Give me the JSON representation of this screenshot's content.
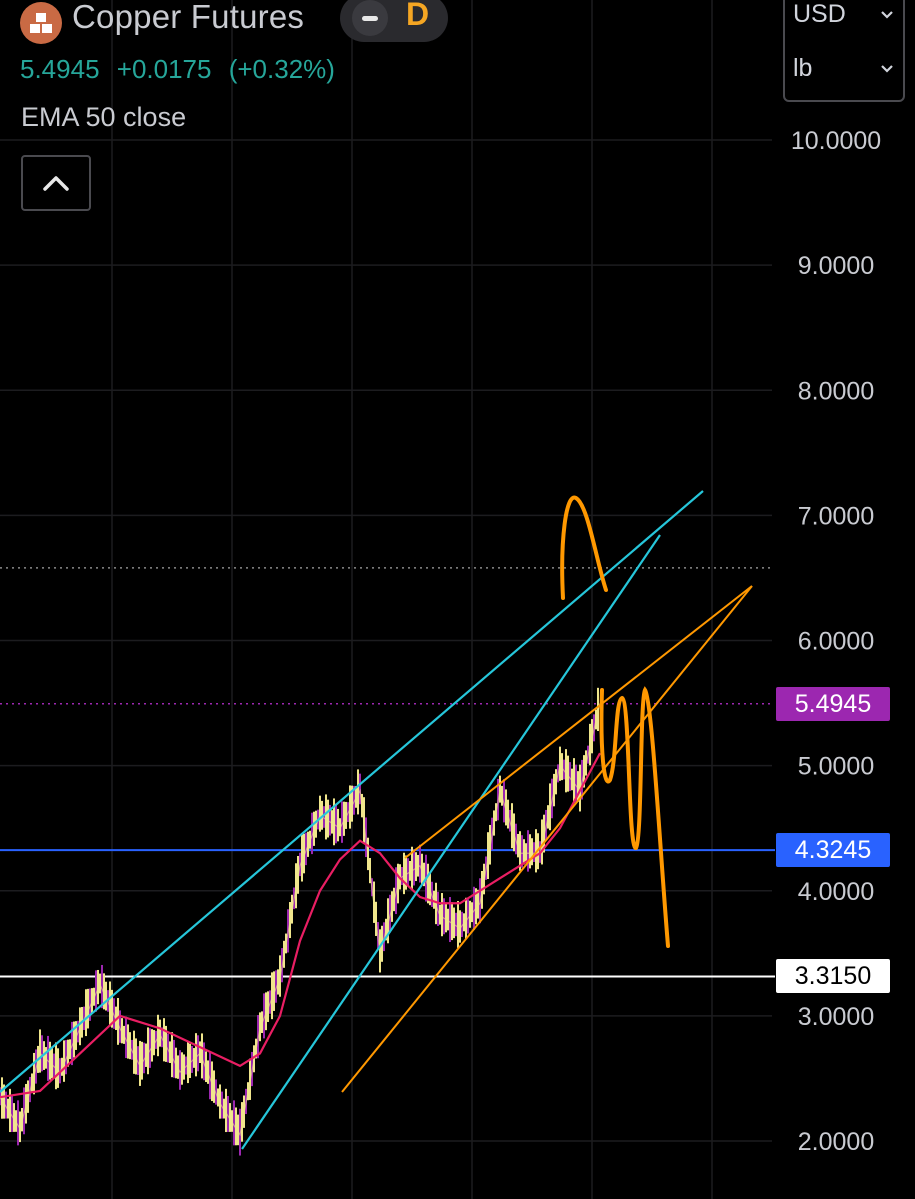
{
  "header": {
    "symbol_name": "Copper Futures",
    "interval": "D",
    "last_price": "5.4945",
    "change": "+0.0175",
    "change_pct": "(+0.32%)",
    "change_color": "#26a69a",
    "indicator_label": "EMA 50 close",
    "logo_icon": "copper-cubes-icon",
    "collapse_icon": "chevron-up-icon"
  },
  "units": {
    "currency": "USD",
    "unit": "lb"
  },
  "price_axis": {
    "ticks": [
      "10.0000",
      "9.0000",
      "8.0000",
      "7.0000",
      "6.0000",
      "5.0000",
      "4.0000",
      "3.0000",
      "2.0000"
    ],
    "tick_values": [
      10,
      9,
      8,
      7,
      6,
      5,
      4,
      3,
      2
    ],
    "scale": "linear"
  },
  "price_labels": {
    "current": {
      "text": "5.4945",
      "value": 5.4945,
      "bg": "#9c27b0",
      "color": "#ffffff"
    },
    "blue_level": {
      "text": "4.3245",
      "value": 4.3245,
      "bg": "#2962ff",
      "color": "#ffffff"
    },
    "white_level": {
      "text": "3.3150",
      "value": 3.315,
      "bg": "#ffffff",
      "color": "#000000"
    }
  },
  "chart_data": {
    "type": "line",
    "series": [
      {
        "name": "",
        "color": "#f0e68c",
        "x": [
          0,
          20,
          40,
          60,
          80,
          100,
          120,
          140,
          160,
          180,
          200,
          220,
          240,
          260,
          280,
          300,
          320,
          340,
          360,
          380,
          400,
          420,
          440,
          460,
          480,
          500,
          520,
          540,
          560,
          580,
          600
        ],
        "values": [
          2.35,
          2.1,
          2.7,
          2.55,
          2.9,
          3.25,
          2.9,
          2.6,
          2.85,
          2.55,
          2.7,
          2.3,
          2.05,
          2.9,
          3.3,
          4.2,
          4.6,
          4.5,
          4.8,
          3.5,
          4.1,
          4.2,
          3.8,
          3.7,
          3.9,
          4.8,
          4.3,
          4.3,
          5.0,
          4.8,
          5.5
        ]
      },
      {
        "name": "EMA 50 close",
        "color": "#e91e63",
        "x": [
          0,
          40,
          80,
          120,
          160,
          200,
          240,
          260,
          280,
          300,
          320,
          340,
          360,
          380,
          400,
          420,
          440,
          460,
          480,
          500,
          520,
          540,
          560,
          580,
          600
        ],
        "values": [
          2.35,
          2.4,
          2.7,
          3.0,
          2.9,
          2.75,
          2.6,
          2.7,
          3.0,
          3.6,
          4.0,
          4.25,
          4.4,
          4.3,
          4.1,
          3.95,
          3.9,
          3.9,
          4.0,
          4.1,
          4.2,
          4.3,
          4.5,
          4.8,
          5.1
        ]
      }
    ],
    "ylim": [
      2,
      10
    ],
    "grid": true
  },
  "drawings": {
    "teal_color": "#26c6da",
    "orange_color": "#ff9800",
    "level_blue_color": "#2962ff",
    "level_white_color": "#ffffff",
    "dotted_top_value": 6.58,
    "dotted_purple_value": 5.4945
  }
}
